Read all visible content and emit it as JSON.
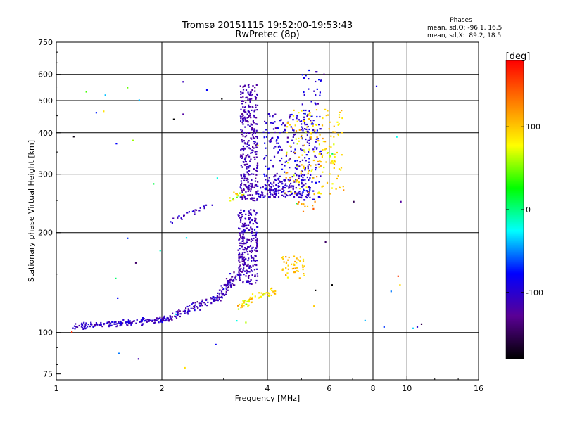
{
  "chart_data": {
    "type": "scatter",
    "title": "Tromsø 20151115 19:52:00-19:53:43",
    "subtitle": "RwPretec (8p)",
    "stats": {
      "heading": "Phases",
      "line_o": "mean, sd,O: -96.1, 16.5",
      "line_x": "mean, sd,X:  89.2, 18.5"
    },
    "xlabel": "Frequency [MHz]",
    "ylabel": "Stationary phase Virtual Height [km]",
    "xscale": "log",
    "yscale": "log",
    "xlim": [
      1,
      16
    ],
    "ylim": [
      72,
      750
    ],
    "xticks": [
      {
        "value": 1,
        "label": "1",
        "grid": false
      },
      {
        "value": 2,
        "label": "2",
        "grid": true
      },
      {
        "value": 4,
        "label": "4",
        "grid": true
      },
      {
        "value": 6,
        "label": "6",
        "grid": true
      },
      {
        "value": 8,
        "label": "8",
        "grid": true
      },
      {
        "value": 10,
        "label": "10",
        "grid": true
      },
      {
        "value": 16,
        "label": "16",
        "grid": false
      }
    ],
    "yticks": [
      {
        "value": 75,
        "label": "75",
        "grid": false
      },
      {
        "value": 100,
        "label": "100",
        "grid": true
      },
      {
        "value": 200,
        "label": "200",
        "grid": true
      },
      {
        "value": 300,
        "label": "300",
        "grid": true
      },
      {
        "value": 400,
        "label": "400",
        "grid": true
      },
      {
        "value": 500,
        "label": "500",
        "grid": true
      },
      {
        "value": 600,
        "label": "600",
        "grid": true
      },
      {
        "value": 750,
        "label": "750",
        "grid": false
      }
    ],
    "grid": true,
    "colorbar": {
      "label": "[deg]",
      "range": [
        -180,
        180
      ],
      "ticks": [
        {
          "value": 100,
          "label": "100"
        },
        {
          "value": 0,
          "label": "0"
        },
        {
          "value": -100,
          "label": "-100"
        }
      ],
      "colormap": [
        "#000000",
        "#5a0095",
        "#0000ff",
        "#00ffff",
        "#00ff00",
        "#ffff00",
        "#ff8000",
        "#ff0000"
      ]
    },
    "series": [
      {
        "kind": "trace",
        "from": [
          1.12,
          104
        ],
        "to": [
          2.05,
          110
        ],
        "x_jitter": 0.02,
        "y_jitter": 0.02,
        "n": 150,
        "phase": -105,
        "phase_spread": 12
      },
      {
        "kind": "trace",
        "from": [
          2.05,
          110
        ],
        "to": [
          2.9,
          128
        ],
        "x_jitter": 0.03,
        "y_jitter": 0.03,
        "n": 90,
        "phase": -110,
        "phase_spread": 14
      },
      {
        "kind": "trace",
        "from": [
          2.9,
          128
        ],
        "to": [
          3.3,
          150
        ],
        "x_jitter": 0.03,
        "y_jitter": 0.04,
        "n": 70,
        "phase": -115,
        "phase_spread": 14
      },
      {
        "kind": "band",
        "x": [
          3.3,
          3.75
        ],
        "y": [
          140,
          235
        ],
        "n": 260,
        "phase": -112,
        "phase_spread": 12
      },
      {
        "kind": "trace",
        "from": [
          3.3,
          120
        ],
        "to": [
          4.2,
          135
        ],
        "x_jitter": 0.02,
        "y_jitter": 0.03,
        "n": 55,
        "phase": 95,
        "phase_spread": 20
      },
      {
        "kind": "band",
        "x": [
          4.4,
          5.1
        ],
        "y": [
          145,
          170
        ],
        "n": 45,
        "phase": 100,
        "phase_spread": 18
      },
      {
        "kind": "trace",
        "from": [
          2.1,
          215
        ],
        "to": [
          2.8,
          245
        ],
        "x_jitter": 0.02,
        "y_jitter": 0.02,
        "n": 25,
        "phase": -110,
        "phase_spread": 10
      },
      {
        "kind": "trace",
        "from": [
          3.1,
          250
        ],
        "to": [
          3.4,
          265
        ],
        "x_jitter": 0.02,
        "y_jitter": 0.02,
        "n": 15,
        "phase": 60,
        "phase_spread": 40
      },
      {
        "kind": "band",
        "x": [
          3.35,
          3.75
        ],
        "y": [
          250,
          560
        ],
        "n": 320,
        "phase": -115,
        "phase_spread": 12
      },
      {
        "kind": "band",
        "x": [
          3.75,
          5.3
        ],
        "y": [
          255,
          290
        ],
        "n": 170,
        "phase": -105,
        "phase_spread": 15
      },
      {
        "kind": "band",
        "x": [
          3.9,
          5.5
        ],
        "y": [
          290,
          460
        ],
        "n": 170,
        "phase": -100,
        "phase_spread": 18
      },
      {
        "kind": "band",
        "x": [
          5.0,
          5.7
        ],
        "y": [
          250,
          620
        ],
        "n": 100,
        "phase": -95,
        "phase_spread": 18
      },
      {
        "kind": "band",
        "x": [
          4.5,
          6.6
        ],
        "y": [
          260,
          470
        ],
        "n": 170,
        "phase": 95,
        "phase_spread": 20
      },
      {
        "kind": "band",
        "x": [
          4.8,
          5.5
        ],
        "y": [
          230,
          250
        ],
        "n": 12,
        "phase": 130,
        "phase_spread": 20
      },
      {
        "kind": "scatter",
        "x": [
          1.05,
          9.8
        ],
        "y": [
          78,
          560
        ],
        "n": 45,
        "phase": -60,
        "phase_spread": 120
      },
      {
        "kind": "points",
        "x": [
          10.4,
          10.7,
          11.0,
          8.6,
          9.6,
          2.3,
          2.3,
          1.3,
          2.85,
          5.8
        ],
        "y": [
          103,
          104,
          106,
          104,
          248,
          570,
          455,
          460,
          92,
          600
        ],
        "phase": -80,
        "phase_spread": 80
      }
    ]
  }
}
